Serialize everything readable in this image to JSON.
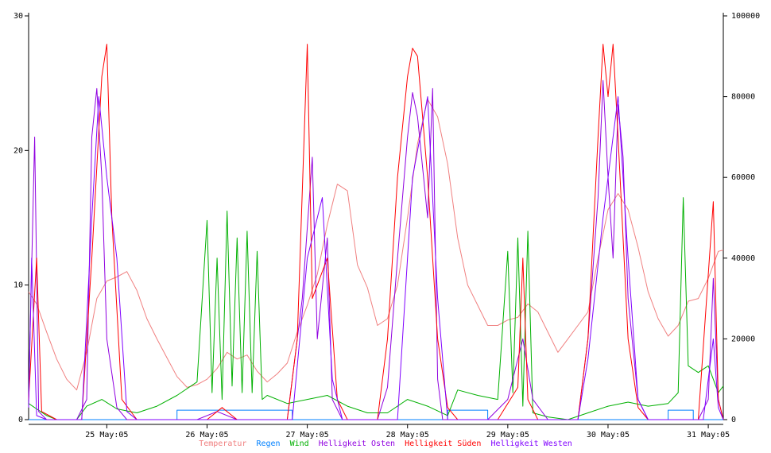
{
  "chart_data": {
    "type": "line",
    "title": "",
    "x_ticks": [
      "25 May:05",
      "26 May:05",
      "27 May:05",
      "28 May:05",
      "29 May:05",
      "30 May:05",
      "31 May:05"
    ],
    "x_range_days": [
      24.72,
      31.65
    ],
    "y_left": {
      "ticks": [
        "0",
        "10",
        "20",
        "30"
      ],
      "range": [
        0,
        30
      ]
    },
    "y_right": {
      "ticks": [
        "0",
        "20000",
        "40000",
        "60000",
        "80000",
        "100000"
      ],
      "range": [
        0,
        100000
      ]
    },
    "grid": false,
    "legend_position": "bottom",
    "series": [
      {
        "name": "Temperatur",
        "color": "#f08080",
        "axis": "left",
        "points": [
          [
            24.72,
            9.5
          ],
          [
            24.8,
            8.6
          ],
          [
            24.9,
            6.5
          ],
          [
            25.0,
            4.5
          ],
          [
            25.1,
            3.0
          ],
          [
            25.2,
            2.2
          ],
          [
            25.3,
            5.0
          ],
          [
            25.4,
            9.0
          ],
          [
            25.5,
            10.3
          ],
          [
            25.6,
            10.6
          ],
          [
            25.7,
            11.0
          ],
          [
            25.8,
            9.6
          ],
          [
            25.9,
            7.5
          ],
          [
            26.0,
            6.0
          ],
          [
            26.1,
            4.6
          ],
          [
            26.2,
            3.2
          ],
          [
            26.3,
            2.4
          ],
          [
            26.4,
            2.6
          ],
          [
            26.5,
            3.0
          ],
          [
            26.6,
            3.8
          ],
          [
            26.7,
            5.0
          ],
          [
            26.8,
            4.5
          ],
          [
            26.9,
            4.8
          ],
          [
            27.0,
            3.6
          ],
          [
            27.1,
            2.8
          ],
          [
            27.2,
            3.4
          ],
          [
            27.3,
            4.2
          ],
          [
            27.4,
            6.5
          ],
          [
            27.5,
            8.5
          ],
          [
            27.6,
            10.8
          ],
          [
            27.7,
            14.5
          ],
          [
            27.8,
            17.5
          ],
          [
            27.9,
            17.0
          ],
          [
            28.0,
            11.5
          ],
          [
            28.1,
            9.8
          ],
          [
            28.2,
            7.0
          ],
          [
            28.3,
            7.5
          ],
          [
            28.4,
            10.0
          ],
          [
            28.5,
            15.0
          ],
          [
            28.6,
            20.5
          ],
          [
            28.7,
            23.8
          ],
          [
            28.8,
            22.5
          ],
          [
            28.9,
            19.0
          ],
          [
            29.0,
            13.5
          ],
          [
            29.1,
            10.0
          ],
          [
            29.2,
            8.5
          ],
          [
            29.3,
            7.0
          ],
          [
            29.4,
            7.0
          ],
          [
            29.5,
            7.4
          ],
          [
            29.6,
            7.6
          ],
          [
            29.7,
            8.6
          ],
          [
            29.8,
            8.0
          ],
          [
            29.9,
            6.5
          ],
          [
            30.0,
            5.0
          ],
          [
            30.1,
            6.0
          ],
          [
            30.2,
            7.0
          ],
          [
            30.3,
            8.0
          ],
          [
            30.4,
            12.0
          ],
          [
            30.5,
            15.6
          ],
          [
            30.6,
            16.8
          ],
          [
            30.7,
            15.6
          ],
          [
            30.8,
            12.8
          ],
          [
            30.9,
            9.5
          ],
          [
            31.0,
            7.5
          ],
          [
            31.1,
            6.2
          ],
          [
            31.2,
            7.0
          ],
          [
            31.3,
            8.8
          ],
          [
            31.4,
            9.0
          ],
          [
            31.5,
            10.5
          ],
          [
            31.6,
            12.5
          ],
          [
            31.65,
            12.6
          ]
        ]
      },
      {
        "name": "Regen",
        "color": "#0080ff",
        "axis": "left",
        "points": [
          [
            24.72,
            0
          ],
          [
            26.2,
            0
          ],
          [
            26.2,
            0.7
          ],
          [
            27.35,
            0.7
          ],
          [
            27.35,
            0
          ],
          [
            28.9,
            0
          ],
          [
            28.9,
            0.7
          ],
          [
            29.3,
            0.7
          ],
          [
            29.3,
            0
          ],
          [
            31.1,
            0
          ],
          [
            31.1,
            0.7
          ],
          [
            31.35,
            0.7
          ],
          [
            31.35,
            0
          ],
          [
            31.65,
            0
          ]
        ]
      },
      {
        "name": "Wind",
        "color": "#00b000",
        "axis": "left",
        "points": [
          [
            24.72,
            1.2
          ],
          [
            24.8,
            0.8
          ],
          [
            24.9,
            0.3
          ],
          [
            25.0,
            0.0
          ],
          [
            25.2,
            0.0
          ],
          [
            25.3,
            1.0
          ],
          [
            25.45,
            1.5
          ],
          [
            25.6,
            0.8
          ],
          [
            25.8,
            0.5
          ],
          [
            26.0,
            1.0
          ],
          [
            26.2,
            1.8
          ],
          [
            26.4,
            2.8
          ],
          [
            26.5,
            14.8
          ],
          [
            26.55,
            2.0
          ],
          [
            26.6,
            12.0
          ],
          [
            26.65,
            1.5
          ],
          [
            26.7,
            15.5
          ],
          [
            26.75,
            2.5
          ],
          [
            26.8,
            13.5
          ],
          [
            26.85,
            2.0
          ],
          [
            26.9,
            14.0
          ],
          [
            26.95,
            2.0
          ],
          [
            27.0,
            12.5
          ],
          [
            27.05,
            1.5
          ],
          [
            27.1,
            1.8
          ],
          [
            27.3,
            1.2
          ],
          [
            27.5,
            1.5
          ],
          [
            27.7,
            1.8
          ],
          [
            27.9,
            1.0
          ],
          [
            28.1,
            0.5
          ],
          [
            28.3,
            0.5
          ],
          [
            28.5,
            1.5
          ],
          [
            28.7,
            1.0
          ],
          [
            28.9,
            0.3
          ],
          [
            29.0,
            2.2
          ],
          [
            29.2,
            1.8
          ],
          [
            29.4,
            1.5
          ],
          [
            29.5,
            12.5
          ],
          [
            29.55,
            2.0
          ],
          [
            29.6,
            13.5
          ],
          [
            29.65,
            1.0
          ],
          [
            29.7,
            14.0
          ],
          [
            29.75,
            0.5
          ],
          [
            29.9,
            0.2
          ],
          [
            30.1,
            0.0
          ],
          [
            30.3,
            0.5
          ],
          [
            30.5,
            1.0
          ],
          [
            30.7,
            1.3
          ],
          [
            30.9,
            1.0
          ],
          [
            31.1,
            1.2
          ],
          [
            31.2,
            2.0
          ],
          [
            31.25,
            16.5
          ],
          [
            31.3,
            4.0
          ],
          [
            31.4,
            3.5
          ],
          [
            31.5,
            4.0
          ],
          [
            31.6,
            2.0
          ],
          [
            31.65,
            2.5
          ]
        ]
      },
      {
        "name": "Helligkeit Osten",
        "color": "#9000e0",
        "axis": "right",
        "points": [
          [
            24.72,
            5000
          ],
          [
            24.78,
            70000
          ],
          [
            24.82,
            2000
          ],
          [
            24.9,
            0
          ],
          [
            25.2,
            0
          ],
          [
            25.3,
            5000
          ],
          [
            25.35,
            70000
          ],
          [
            25.4,
            82000
          ],
          [
            25.45,
            60000
          ],
          [
            25.5,
            20000
          ],
          [
            25.6,
            3000
          ],
          [
            25.7,
            0
          ],
          [
            26.4,
            0
          ],
          [
            26.6,
            2000
          ],
          [
            26.8,
            0
          ],
          [
            27.3,
            0
          ],
          [
            27.45,
            30000
          ],
          [
            27.55,
            65000
          ],
          [
            27.6,
            20000
          ],
          [
            27.7,
            45000
          ],
          [
            27.75,
            5000
          ],
          [
            27.85,
            0
          ],
          [
            28.2,
            0
          ],
          [
            28.3,
            8000
          ],
          [
            28.4,
            40000
          ],
          [
            28.5,
            70000
          ],
          [
            28.55,
            81000
          ],
          [
            28.6,
            75000
          ],
          [
            28.7,
            50000
          ],
          [
            28.75,
            82000
          ],
          [
            28.8,
            10000
          ],
          [
            28.85,
            0
          ],
          [
            29.3,
            0
          ],
          [
            29.5,
            5000
          ],
          [
            29.65,
            20000
          ],
          [
            29.75,
            5000
          ],
          [
            29.9,
            0
          ],
          [
            30.2,
            0
          ],
          [
            30.3,
            20000
          ],
          [
            30.4,
            55000
          ],
          [
            30.45,
            84000
          ],
          [
            30.5,
            60000
          ],
          [
            30.55,
            40000
          ],
          [
            30.6,
            78000
          ],
          [
            30.65,
            65000
          ],
          [
            30.7,
            30000
          ],
          [
            30.8,
            5000
          ],
          [
            30.9,
            0
          ],
          [
            31.4,
            0
          ],
          [
            31.5,
            5000
          ],
          [
            31.55,
            35000
          ],
          [
            31.6,
            5000
          ],
          [
            31.65,
            0
          ]
        ]
      },
      {
        "name": "Helligkeit Süden",
        "color": "#ff0000",
        "axis": "right",
        "points": [
          [
            24.72,
            5000
          ],
          [
            24.8,
            40000
          ],
          [
            24.85,
            2000
          ],
          [
            25.0,
            0
          ],
          [
            25.25,
            0
          ],
          [
            25.35,
            40000
          ],
          [
            25.45,
            85000
          ],
          [
            25.5,
            93000
          ],
          [
            25.55,
            50000
          ],
          [
            25.65,
            5000
          ],
          [
            25.8,
            0
          ],
          [
            26.5,
            0
          ],
          [
            26.65,
            3000
          ],
          [
            26.8,
            0
          ],
          [
            27.3,
            0
          ],
          [
            27.4,
            20000
          ],
          [
            27.5,
            93000
          ],
          [
            27.55,
            30000
          ],
          [
            27.7,
            40000
          ],
          [
            27.8,
            5000
          ],
          [
            27.9,
            0
          ],
          [
            28.2,
            0
          ],
          [
            28.3,
            20000
          ],
          [
            28.4,
            60000
          ],
          [
            28.5,
            85000
          ],
          [
            28.55,
            92000
          ],
          [
            28.6,
            90000
          ],
          [
            28.7,
            60000
          ],
          [
            28.8,
            20000
          ],
          [
            28.9,
            3000
          ],
          [
            29.0,
            0
          ],
          [
            29.4,
            0
          ],
          [
            29.6,
            8000
          ],
          [
            29.65,
            40000
          ],
          [
            29.7,
            5000
          ],
          [
            29.8,
            0
          ],
          [
            30.2,
            0
          ],
          [
            30.3,
            20000
          ],
          [
            30.4,
            70000
          ],
          [
            30.45,
            93000
          ],
          [
            30.5,
            80000
          ],
          [
            30.55,
            93000
          ],
          [
            30.6,
            70000
          ],
          [
            30.7,
            20000
          ],
          [
            30.8,
            3000
          ],
          [
            30.9,
            0
          ],
          [
            31.4,
            0
          ],
          [
            31.55,
            54000
          ],
          [
            31.6,
            5000
          ],
          [
            31.65,
            0
          ]
        ]
      },
      {
        "name": "Helligkeit Westen",
        "color": "#8000ff",
        "axis": "right",
        "points": [
          [
            24.72,
            3000
          ],
          [
            24.75,
            40000
          ],
          [
            24.8,
            1000
          ],
          [
            24.9,
            0
          ],
          [
            25.25,
            0
          ],
          [
            25.35,
            50000
          ],
          [
            25.42,
            80000
          ],
          [
            25.5,
            60000
          ],
          [
            25.6,
            40000
          ],
          [
            25.7,
            2000
          ],
          [
            25.8,
            0
          ],
          [
            27.35,
            0
          ],
          [
            27.5,
            40000
          ],
          [
            27.65,
            55000
          ],
          [
            27.75,
            10000
          ],
          [
            27.85,
            0
          ],
          [
            28.4,
            0
          ],
          [
            28.55,
            60000
          ],
          [
            28.7,
            80000
          ],
          [
            28.8,
            30000
          ],
          [
            28.9,
            0
          ],
          [
            30.2,
            0
          ],
          [
            30.3,
            15000
          ],
          [
            30.45,
            50000
          ],
          [
            30.6,
            80000
          ],
          [
            30.7,
            40000
          ],
          [
            30.8,
            5000
          ],
          [
            30.9,
            0
          ],
          [
            31.45,
            0
          ],
          [
            31.55,
            20000
          ],
          [
            31.6,
            3000
          ],
          [
            31.65,
            0
          ]
        ]
      }
    ]
  },
  "legend_items": [
    "Temperatur",
    "Regen",
    "Wind",
    "Helligkeit Osten",
    "Helligkeit Süden",
    "Helligkeit Westen"
  ]
}
